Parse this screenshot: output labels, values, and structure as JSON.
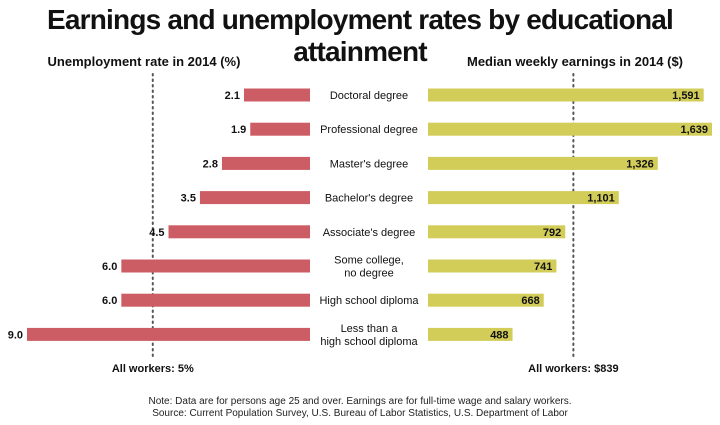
{
  "title": "Earnings and unemployment rates by educational attainment",
  "chart_data": [
    {
      "type": "bar",
      "orientation": "horizontal",
      "title": "Unemployment rate in 2014 (%)",
      "categories": [
        "Doctoral degree",
        "Professional degree",
        "Master's degree",
        "Bachelor's degree",
        "Associate's degree",
        "Some college,\nno degree",
        "High school diploma",
        "Less than a\nhigh school diploma"
      ],
      "values": [
        2.1,
        1.9,
        2.8,
        3.5,
        4.5,
        6.0,
        6.0,
        9.0
      ],
      "value_labels": [
        "2.1",
        "1.9",
        "2.8",
        "3.5",
        "4.5",
        "6.0",
        "6.0",
        "9.0"
      ],
      "direction": "leftward",
      "xlim": [
        0,
        9.0
      ],
      "reference_line": {
        "value": 5,
        "label": "All workers: 5%"
      },
      "color": "#cd5d64"
    },
    {
      "type": "bar",
      "orientation": "horizontal",
      "title": "Median weekly earnings in 2014 ($)",
      "categories": [
        "Doctoral degree",
        "Professional degree",
        "Master's degree",
        "Bachelor's degree",
        "Associate's degree",
        "Some college,\nno degree",
        "High school diploma",
        "Less than a\nhigh school diploma"
      ],
      "values": [
        1591,
        1639,
        1326,
        1101,
        792,
        741,
        668,
        488
      ],
      "value_labels": [
        "1,591",
        "1,639",
        "1,326",
        "1,101",
        "792",
        "741",
        "668",
        "488"
      ],
      "direction": "rightward",
      "xlim": [
        0,
        1639
      ],
      "reference_line": {
        "value": 839,
        "label": "All workers: $839"
      },
      "color": "#d2cc58"
    }
  ],
  "note_lines": [
    "Note: Data are for persons age 25 and over. Earnings are for full-time wage and salary workers.",
    "Source: Current Population Survey, U.S. Bureau of Labor Statistics, U.S. Department of Labor"
  ]
}
